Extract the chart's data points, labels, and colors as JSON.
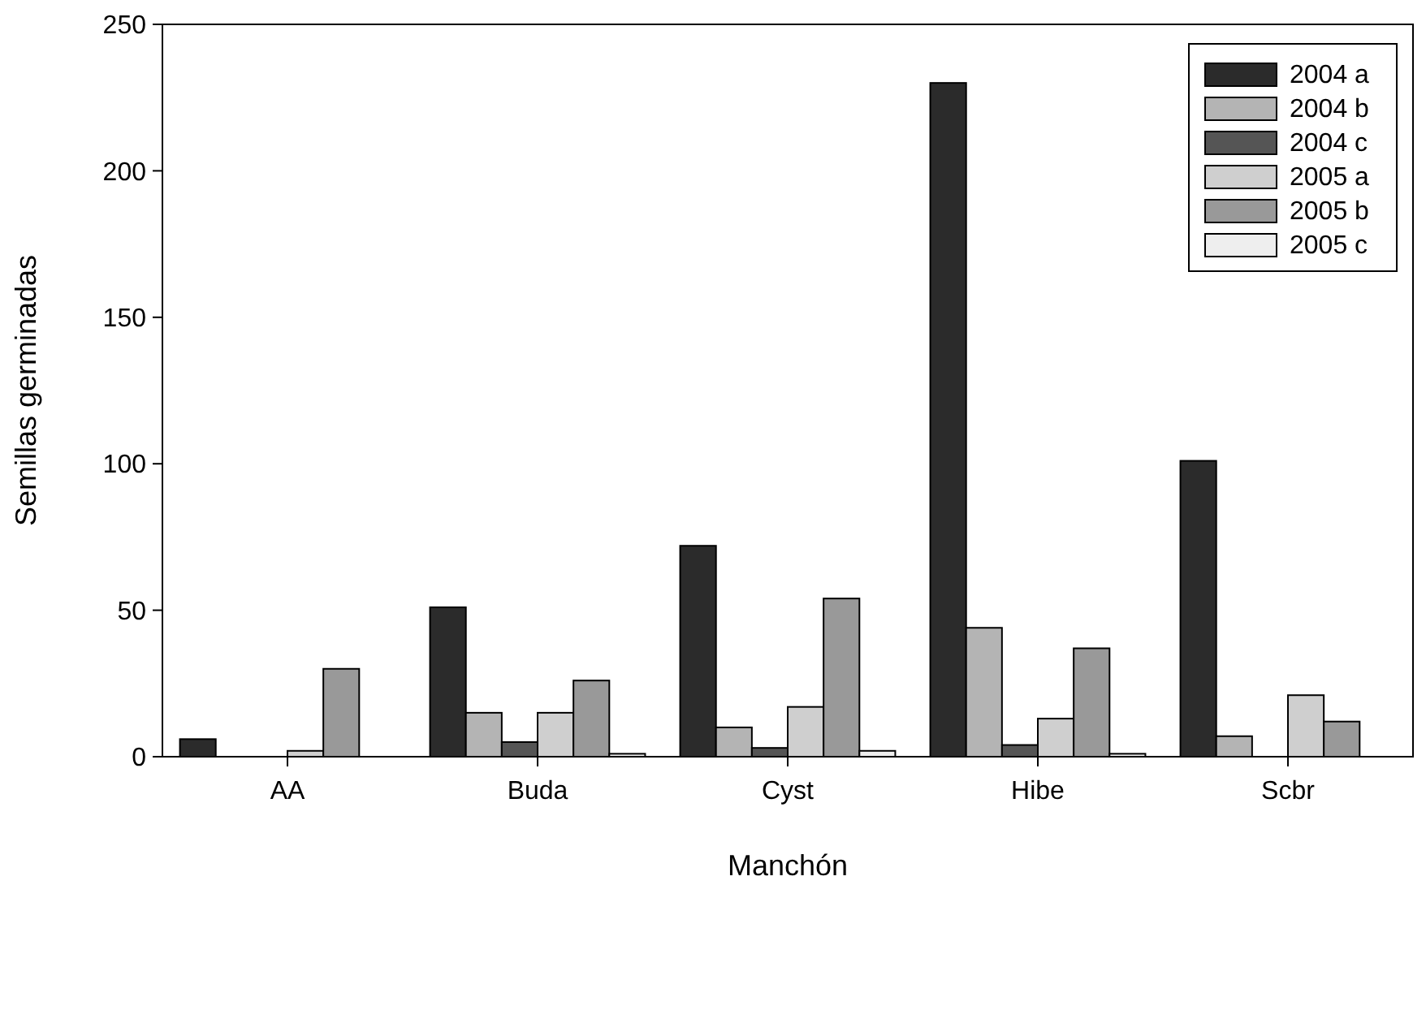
{
  "chart_data": {
    "type": "bar",
    "xlabel": "Manchón",
    "ylabel": "Semillas germinadas",
    "categories": [
      "AA",
      "Buda",
      "Cyst",
      "Hibe",
      "Scbr"
    ],
    "series": [
      {
        "name": "2004 a",
        "color": "#2b2b2b",
        "values": [
          6,
          51,
          72,
          230,
          101
        ]
      },
      {
        "name": "2004 b",
        "color": "#b4b4b4",
        "values": [
          0,
          15,
          10,
          44,
          7
        ]
      },
      {
        "name": "2004 c",
        "color": "#555555",
        "values": [
          0,
          5,
          3,
          4,
          0
        ]
      },
      {
        "name": "2005 a",
        "color": "#cfcfcf",
        "values": [
          2,
          15,
          17,
          13,
          21
        ]
      },
      {
        "name": "2005 b",
        "color": "#999999",
        "values": [
          30,
          26,
          54,
          37,
          12
        ]
      },
      {
        "name": "2005 c",
        "color": "#eeeeee",
        "values": [
          0,
          1,
          2,
          1,
          0
        ]
      }
    ],
    "ylim": [
      0,
      250
    ],
    "yticks": [
      0,
      50,
      100,
      150,
      200,
      250
    ],
    "grid": false,
    "legend": "top right"
  }
}
